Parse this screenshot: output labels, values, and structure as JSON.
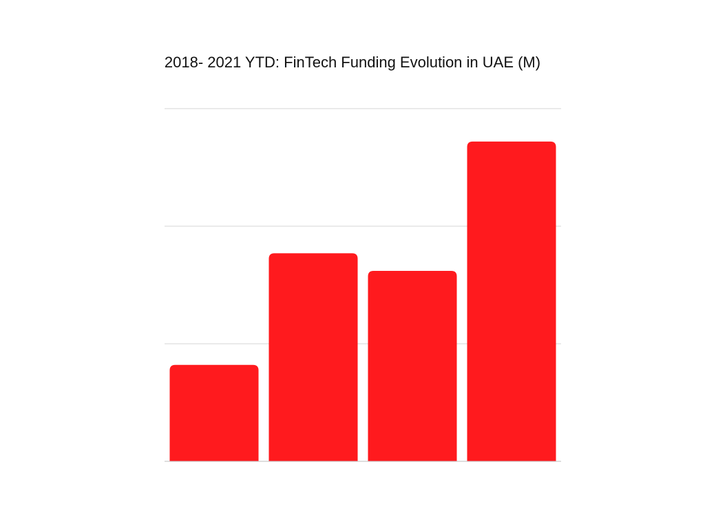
{
  "chart_data": {
    "type": "bar",
    "title": "2018- 2021 YTD: FinTech Funding Evolution in UAE  (M)",
    "categories": [
      null,
      null,
      null,
      null
    ],
    "values": [
      0.82,
      1.77,
      1.62,
      2.72
    ],
    "color": "#ff1a1e",
    "ylim": [
      0,
      3
    ],
    "yticks": [
      0,
      1,
      2,
      3
    ],
    "grid": true,
    "tick_labels": false
  }
}
